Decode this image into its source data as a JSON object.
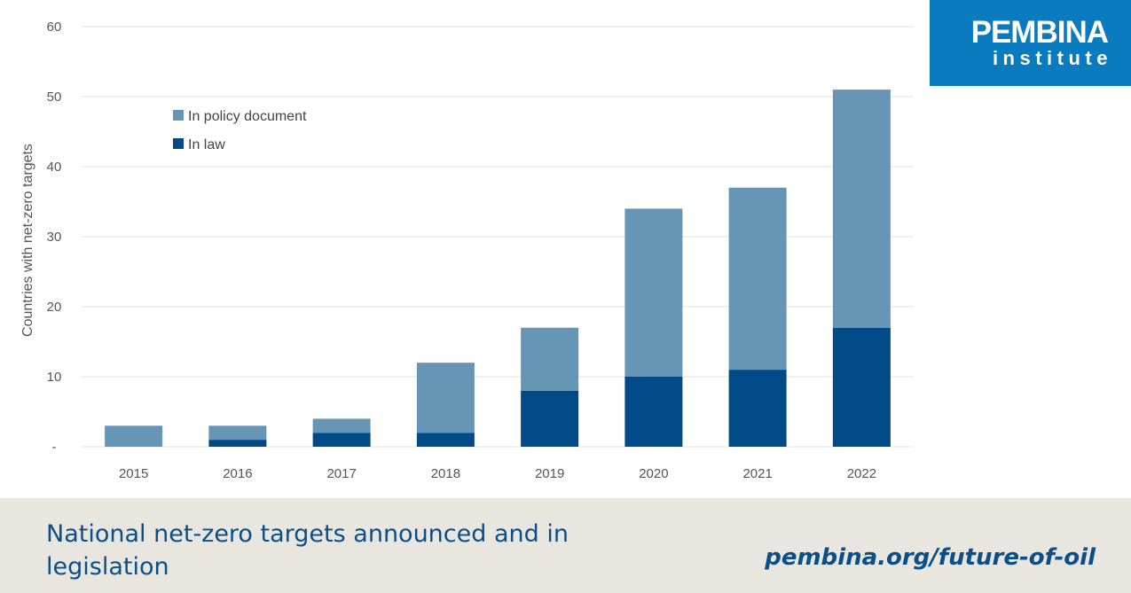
{
  "chart_data": {
    "type": "bar",
    "stacked": true,
    "categories": [
      "2015",
      "2016",
      "2017",
      "2018",
      "2019",
      "2020",
      "2021",
      "2022"
    ],
    "series": [
      {
        "name": "In law",
        "values": [
          0,
          1,
          2,
          2,
          8,
          10,
          11,
          17
        ],
        "color": "#004a87"
      },
      {
        "name": "In policy document",
        "values": [
          3,
          2,
          2,
          10,
          9,
          24,
          26,
          34
        ],
        "color": "#6795b6"
      }
    ],
    "legend_order": [
      "In policy document",
      "In law"
    ],
    "legend_position": "top-left",
    "ylabel": "Countries with net-zero targets",
    "xlabel": "",
    "ylim": [
      0,
      60
    ],
    "yticks": [
      {
        "value": 0,
        "label": "-"
      },
      {
        "value": 10,
        "label": "10"
      },
      {
        "value": 20,
        "label": "20"
      },
      {
        "value": 30,
        "label": "30"
      },
      {
        "value": 40,
        "label": "40"
      },
      {
        "value": 50,
        "label": "50"
      },
      {
        "value": 60,
        "label": "60"
      }
    ],
    "grid": true
  },
  "logo": {
    "line1": "PEMBINA",
    "line2": "institute",
    "color": "#0b7bc0"
  },
  "footer": {
    "title": "National net-zero targets announced and in legislation",
    "url": "pembina.org/future-of-oil"
  }
}
